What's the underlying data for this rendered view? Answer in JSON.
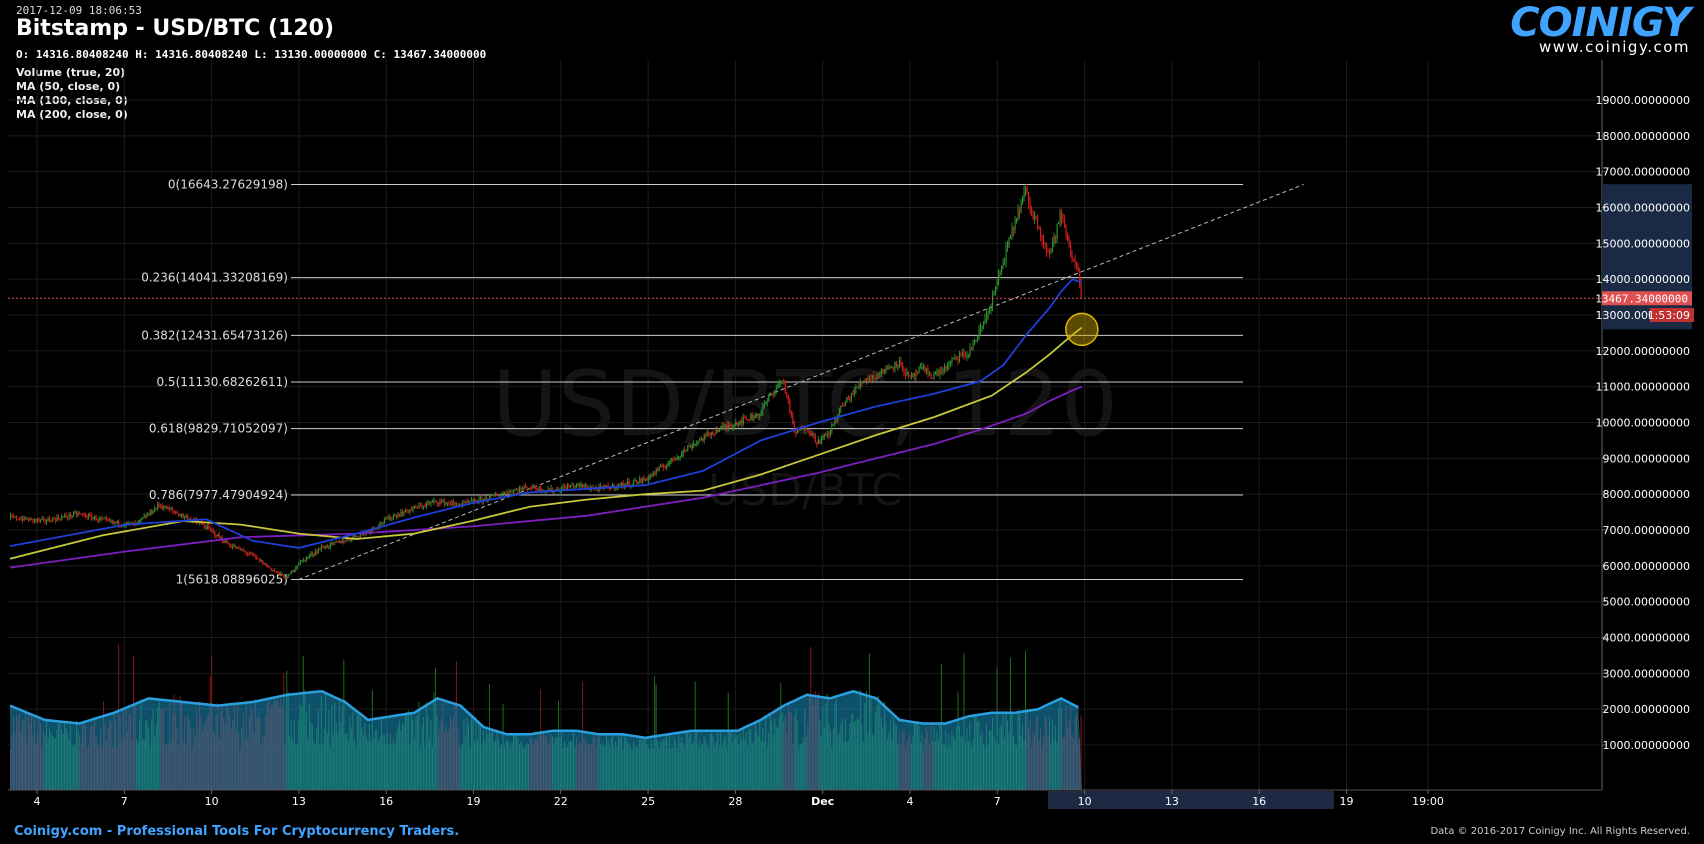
{
  "header": {
    "datetime": "2017-12-09 18:06:53",
    "title": "Bitstamp - USD/BTC (120)",
    "ohlc": "O: 14316.80408240 H: 14316.80408240 L: 13130.00000000 C: 13467.34000000"
  },
  "indicators": [
    "Volume (true, 20)",
    "MA (50, close, 0)",
    "MA (100, close, 0)",
    "MA (200, close, 0)"
  ],
  "logo": {
    "name": "COINIGY",
    "url": "www.coinigy.com"
  },
  "watermark": {
    "line1": "USD/BTC, 120",
    "line2": "USD/BTC"
  },
  "footer": {
    "left": "Coinigy.com - Professional Tools For Cryptocurrency Traders.",
    "right": "Data © 2016-2017 Coinigy Inc. All Rights Reserved."
  },
  "colors": {
    "background": "#000000",
    "up": "#2e8b2e",
    "down": "#c81e1e",
    "ma50": "#1f3fd9",
    "ma100": "#c8c83a",
    "ma200": "#7d1fbf",
    "volume_fill": "#1a8fbf",
    "current_price": "#e05050",
    "fib_line": "#cccccc"
  },
  "chart_data": {
    "type": "candlestick",
    "exchange": "Bitstamp",
    "pair": "USD/BTC",
    "interval": "120",
    "x_ticks": [
      "4",
      "7",
      "10",
      "13",
      "16",
      "19",
      "22",
      "25",
      "28",
      "Dec",
      "4",
      "7",
      "10",
      "13",
      "16",
      "19",
      "19:00"
    ],
    "y_ticks": [
      "19000.00000000",
      "18000.00000000",
      "17000.00000000",
      "16000.00000000",
      "15000.00000000",
      "14000.00000000",
      "13000.00000000",
      "12000.00000000",
      "11000.00000000",
      "10000.00000000",
      "9000.00000000",
      "8000.00000000",
      "7000.00000000",
      "6000.00000000",
      "5000.00000000",
      "4000.00000000",
      "3000.00000000",
      "2000.00000000",
      "1000.00000000"
    ],
    "ylim": [
      720,
      20000
    ],
    "price_path": [
      [
        0,
        7350
      ],
      [
        3,
        7250
      ],
      [
        6,
        7450
      ],
      [
        9,
        7200
      ],
      [
        11,
        7150
      ],
      [
        13,
        7700
      ],
      [
        15,
        7400
      ],
      [
        17,
        7100
      ],
      [
        19,
        6600
      ],
      [
        21,
        6300
      ],
      [
        23,
        5850
      ],
      [
        24,
        5650
      ],
      [
        25,
        6050
      ],
      [
        27,
        6500
      ],
      [
        29,
        6700
      ],
      [
        31,
        6950
      ],
      [
        33,
        7350
      ],
      [
        35,
        7600
      ],
      [
        37,
        7800
      ],
      [
        39,
        7700
      ],
      [
        41,
        7850
      ],
      [
        43,
        8050
      ],
      [
        45,
        8200
      ],
      [
        47,
        8100
      ],
      [
        49,
        8250
      ],
      [
        51,
        8150
      ],
      [
        53,
        8250
      ],
      [
        55,
        8400
      ],
      [
        57,
        8850
      ],
      [
        59,
        9350
      ],
      [
        61,
        9750
      ],
      [
        63,
        10000
      ],
      [
        65,
        10250
      ],
      [
        66,
        10800
      ],
      [
        67,
        11200
      ],
      [
        67.5,
        10500
      ],
      [
        68,
        9700
      ],
      [
        69,
        9900
      ],
      [
        70,
        9450
      ],
      [
        71,
        9700
      ],
      [
        72,
        10400
      ],
      [
        73,
        10800
      ],
      [
        74,
        11200
      ],
      [
        75,
        11300
      ],
      [
        76,
        11500
      ],
      [
        77,
        11700
      ],
      [
        78,
        11200
      ],
      [
        79,
        11500
      ],
      [
        80,
        11300
      ],
      [
        81,
        11500
      ],
      [
        82,
        11800
      ],
      [
        83,
        11900
      ],
      [
        84,
        12500
      ],
      [
        85,
        13300
      ],
      [
        86,
        14400
      ],
      [
        87,
        15500
      ],
      [
        88,
        16500
      ],
      [
        88.3,
        16000
      ],
      [
        89,
        15600
      ],
      [
        90,
        14700
      ],
      [
        90.5,
        15100
      ],
      [
        91,
        15800
      ],
      [
        91.5,
        15300
      ],
      [
        92,
        14600
      ],
      [
        92.5,
        14400
      ],
      [
        92.8,
        13467
      ]
    ],
    "ma50": [
      [
        0,
        6550
      ],
      [
        10,
        7150
      ],
      [
        17,
        7300
      ],
      [
        21,
        6700
      ],
      [
        25,
        6500
      ],
      [
        30,
        6900
      ],
      [
        35,
        7350
      ],
      [
        40,
        7750
      ],
      [
        45,
        8050
      ],
      [
        50,
        8150
      ],
      [
        55,
        8250
      ],
      [
        60,
        8650
      ],
      [
        65,
        9500
      ],
      [
        70,
        10000
      ],
      [
        75,
        10450
      ],
      [
        80,
        10800
      ],
      [
        84,
        11150
      ],
      [
        86,
        11600
      ],
      [
        88,
        12450
      ],
      [
        90,
        13200
      ],
      [
        91,
        13650
      ],
      [
        92,
        14000
      ],
      [
        92.8,
        13900
      ]
    ],
    "ma100": [
      [
        0,
        6200
      ],
      [
        8,
        6850
      ],
      [
        15,
        7250
      ],
      [
        20,
        7150
      ],
      [
        25,
        6900
      ],
      [
        30,
        6750
      ],
      [
        35,
        6900
      ],
      [
        40,
        7250
      ],
      [
        45,
        7650
      ],
      [
        50,
        7850
      ],
      [
        55,
        8000
      ],
      [
        60,
        8100
      ],
      [
        65,
        8550
      ],
      [
        70,
        9100
      ],
      [
        75,
        9650
      ],
      [
        80,
        10150
      ],
      [
        85,
        10750
      ],
      [
        88,
        11400
      ],
      [
        90,
        11900
      ],
      [
        92,
        12450
      ],
      [
        92.8,
        12650
      ]
    ],
    "ma200": [
      [
        0,
        5950
      ],
      [
        10,
        6400
      ],
      [
        20,
        6800
      ],
      [
        30,
        6900
      ],
      [
        40,
        7100
      ],
      [
        50,
        7400
      ],
      [
        55,
        7650
      ],
      [
        60,
        7900
      ],
      [
        65,
        8250
      ],
      [
        70,
        8600
      ],
      [
        75,
        9000
      ],
      [
        80,
        9400
      ],
      [
        84,
        9800
      ],
      [
        88,
        10250
      ],
      [
        90,
        10600
      ],
      [
        92,
        10900
      ],
      [
        92.8,
        11000
      ]
    ],
    "volume_path": [
      [
        0,
        2100
      ],
      [
        3,
        1700
      ],
      [
        6,
        1600
      ],
      [
        9,
        1900
      ],
      [
        12,
        2300
      ],
      [
        15,
        2200
      ],
      [
        18,
        2100
      ],
      [
        21,
        2200
      ],
      [
        24,
        2400
      ],
      [
        27,
        2500
      ],
      [
        29,
        2200
      ],
      [
        31,
        1700
      ],
      [
        33,
        1800
      ],
      [
        35,
        1900
      ],
      [
        37,
        2300
      ],
      [
        39,
        2100
      ],
      [
        41,
        1500
      ],
      [
        43,
        1300
      ],
      [
        45,
        1300
      ],
      [
        47,
        1400
      ],
      [
        49,
        1400
      ],
      [
        51,
        1300
      ],
      [
        53,
        1300
      ],
      [
        55,
        1200
      ],
      [
        57,
        1300
      ],
      [
        59,
        1400
      ],
      [
        61,
        1400
      ],
      [
        63,
        1400
      ],
      [
        65,
        1700
      ],
      [
        67,
        2100
      ],
      [
        69,
        2400
      ],
      [
        71,
        2300
      ],
      [
        73,
        2500
      ],
      [
        75,
        2300
      ],
      [
        77,
        1700
      ],
      [
        79,
        1600
      ],
      [
        81,
        1600
      ],
      [
        83,
        1800
      ],
      [
        85,
        1900
      ],
      [
        87,
        1900
      ],
      [
        89,
        2000
      ],
      [
        91,
        2300
      ],
      [
        92.8,
        2000
      ]
    ],
    "fibonacci": [
      {
        "label": "0(16643.27629198)",
        "price": 16643.27629198
      },
      {
        "label": "0.236(14041.33208169)",
        "price": 14041.33208169
      },
      {
        "label": "0.382(12431.65473126)",
        "price": 12431.65473126
      },
      {
        "label": "0.5(11130.68262611)",
        "price": 11130.68262611
      },
      {
        "label": "0.618(9829.71052097)",
        "price": 9829.71052097
      },
      {
        "label": "0.786(7977.47904924)",
        "price": 7977.47904924
      },
      {
        "label": "1(5618.08896025)",
        "price": 5618.08896025
      }
    ],
    "trendline": {
      "from": [
        25,
        5618
      ],
      "to": [
        112,
        16643
      ]
    },
    "current_price": {
      "label": "13467.34000000",
      "value": 13467.34,
      "countdown": "1:53:09"
    },
    "highlight_ring": {
      "x": 92.8,
      "price": 12600
    },
    "grid": true
  }
}
